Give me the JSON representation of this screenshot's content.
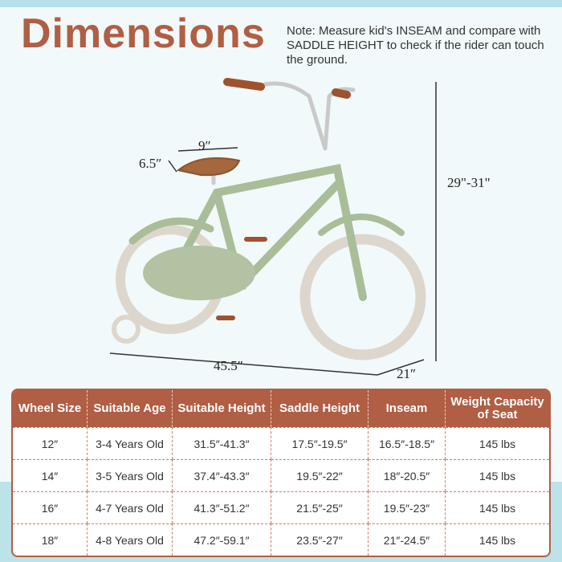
{
  "title": "Dimensions",
  "note": "Note: Measure kid's INSEAM and compare with SADDLE HEIGHT to check if the rider can touch the ground.",
  "dimensions": {
    "seat_length": "9″",
    "seat_width": "6.5″",
    "height": "29\"-31\"",
    "length": "45.5″",
    "width": "21″"
  },
  "colors": {
    "brand": "#b05e44",
    "bike_frame": "#a9bd99",
    "tire": "#ddd6cc"
  },
  "table": {
    "headers": [
      "Wheel Size",
      "Suitable Age",
      "Suitable Height",
      "Saddle Height",
      "Inseam",
      "Weight Capacity of Seat"
    ],
    "rows": [
      [
        "12″",
        "3-4 Years Old",
        "31.5″-41.3″",
        "17.5″-19.5″",
        "16.5″-18.5″",
        "145 lbs"
      ],
      [
        "14″",
        "3-5 Years Old",
        "37.4″-43.3″",
        "19.5″-22″",
        "18″-20.5″",
        "145 lbs"
      ],
      [
        "16″",
        "4-7 Years Old",
        "41.3″-51.2″",
        "21.5″-25″",
        "19.5″-23″",
        "145 lbs"
      ],
      [
        "18″",
        "4-8 Years Old",
        "47.2″-59.1″",
        "23.5″-27″",
        "21″-24.5″",
        "145 lbs"
      ]
    ]
  }
}
